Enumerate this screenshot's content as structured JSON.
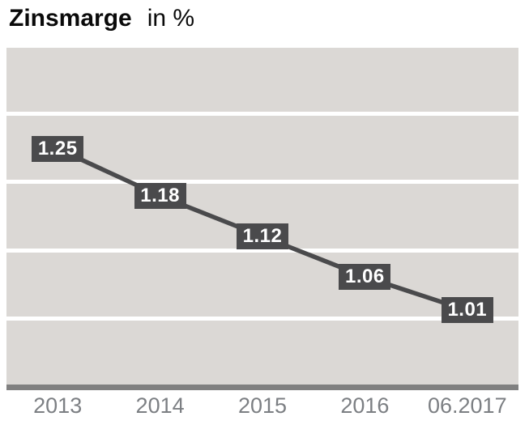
{
  "header": {
    "title": "Zinsmarge",
    "unit_label": "in %"
  },
  "chart_data": {
    "type": "line",
    "title": "Zinsmarge",
    "unit": "in %",
    "categories": [
      "2013",
      "2014",
      "2015",
      "2016",
      "06.2017"
    ],
    "values": [
      1.25,
      1.18,
      1.12,
      1.06,
      1.01
    ],
    "data_labels": [
      "1.25",
      "1.18",
      "1.12",
      "1.06",
      "1.01"
    ],
    "ylim": [
      0.9,
      1.4
    ],
    "band_step": 0.1,
    "grid": "horizontal striped bands with white separators every 0.1",
    "legend": "none",
    "data_label_style": "dark box with white bold text centered on each data point"
  },
  "colors": {
    "background": "#ffffff",
    "title": "#0a0a0a",
    "band": "#dbd8d5",
    "line": "#4a4a4c",
    "label_box_bg": "#4a4a4c",
    "label_box_text": "#ffffff",
    "axis_bar": "#808080",
    "tick_label": "#7c7f83"
  }
}
